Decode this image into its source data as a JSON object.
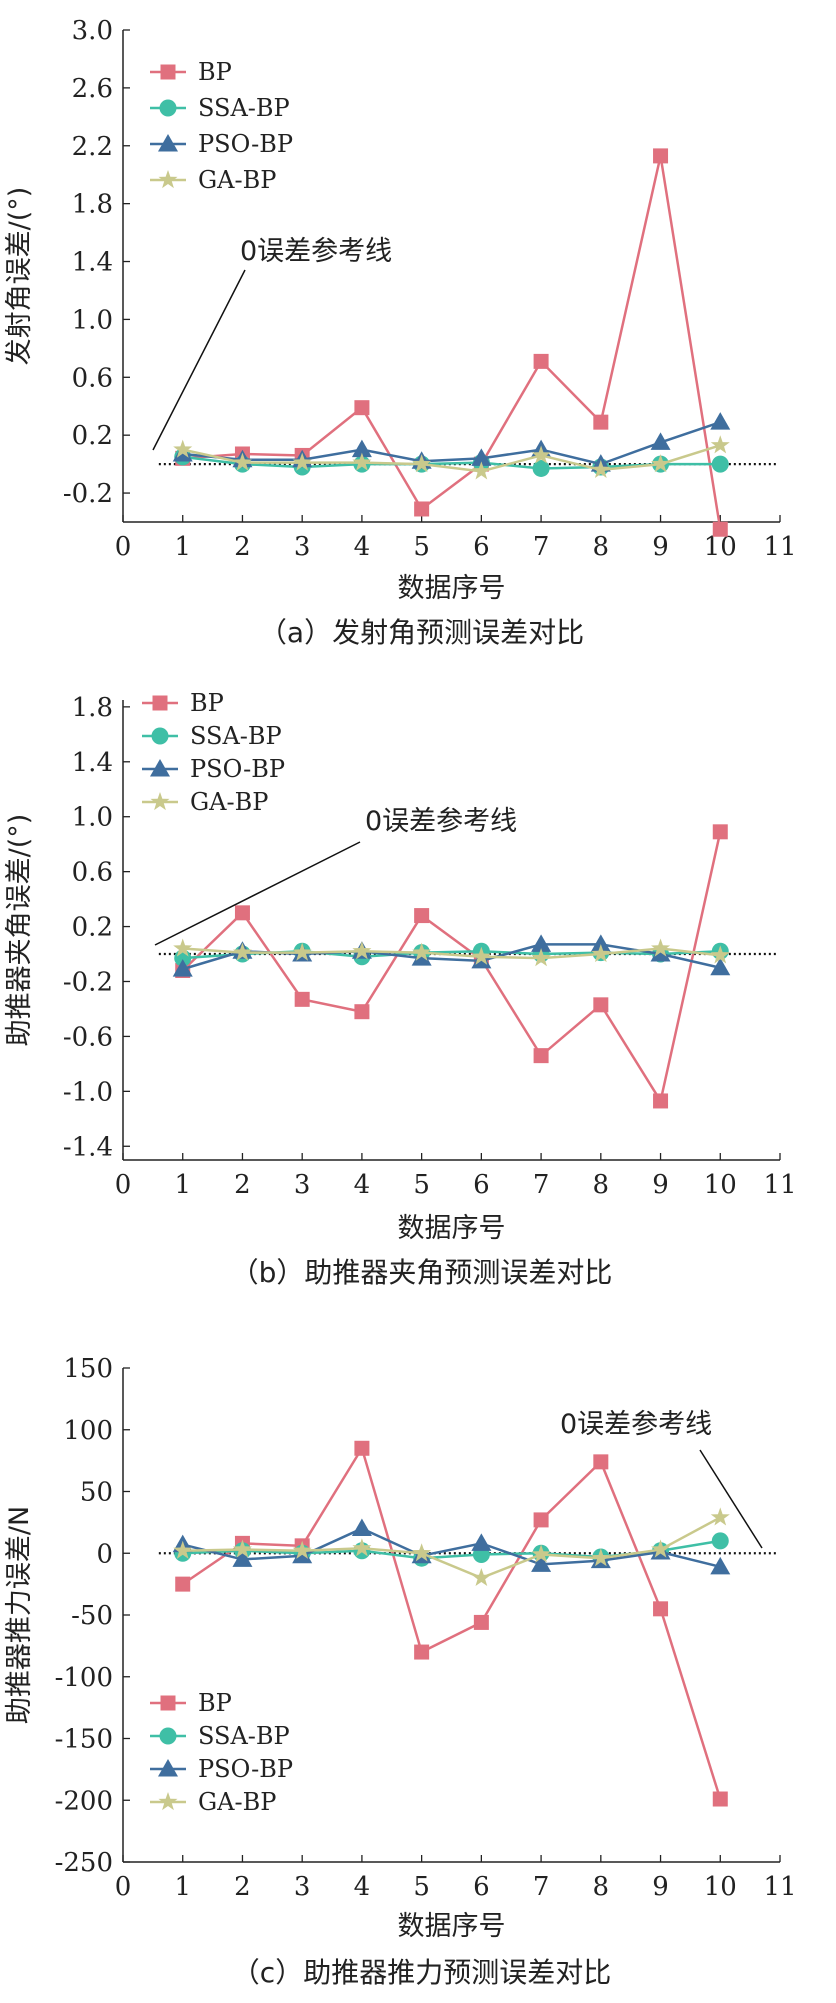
{
  "chart_data": [
    {
      "type": "line",
      "caption": "（a）发射角预测误差对比",
      "xlabel": "数据序号",
      "ylabel": "发射角误差/(°)",
      "xlim": [
        0,
        11
      ],
      "ylim": [
        -0.4,
        3.0
      ],
      "xticks": [
        "0",
        "1",
        "2",
        "3",
        "4",
        "5",
        "6",
        "7",
        "8",
        "9",
        "10",
        "11"
      ],
      "yticks": [
        "3.0",
        "2.6",
        "2.2",
        "1.8",
        "1.4",
        "1.0",
        "0.6",
        "0.2",
        "-0.2"
      ],
      "ytick_values": [
        3.0,
        2.6,
        2.2,
        1.8,
        1.4,
        1.0,
        0.6,
        0.2,
        -0.2
      ],
      "legend_position": "top-left",
      "reference_label": "0误差参考线",
      "x": [
        1,
        2,
        3,
        4,
        5,
        6,
        7,
        8,
        9,
        10
      ],
      "series": [
        {
          "name": "BP",
          "color": "#e0707e",
          "marker": "square",
          "values": [
            0.04,
            0.07,
            0.06,
            0.39,
            -0.31,
            0.0,
            0.71,
            0.29,
            2.13,
            -0.45
          ]
        },
        {
          "name": "SSA-BP",
          "color": "#3fbfa6",
          "marker": "circle",
          "values": [
            0.05,
            0.0,
            -0.02,
            0.0,
            0.0,
            0.01,
            -0.03,
            -0.02,
            0.0,
            0.0
          ]
        },
        {
          "name": "PSO-BP",
          "color": "#3f6e9e",
          "marker": "triangle",
          "values": [
            0.07,
            0.03,
            0.03,
            0.1,
            0.02,
            0.04,
            0.1,
            0.0,
            0.15,
            0.29
          ]
        },
        {
          "name": "GA-BP",
          "color": "#c9c98c",
          "marker": "star",
          "values": [
            0.1,
            0.01,
            0.01,
            0.01,
            0.0,
            -0.05,
            0.06,
            -0.04,
            0.0,
            0.13
          ]
        }
      ]
    },
    {
      "type": "line",
      "caption": "（b）助推器夹角预测误差对比",
      "xlabel": "数据序号",
      "ylabel": "助推器夹角误差/(°)",
      "xlim": [
        0,
        11
      ],
      "ylim": [
        -1.5,
        1.85
      ],
      "xticks": [
        "0",
        "1",
        "2",
        "3",
        "4",
        "5",
        "6",
        "7",
        "8",
        "9",
        "10",
        "11"
      ],
      "yticks": [
        "1.8",
        "1.4",
        "1.0",
        "0.6",
        "0.2",
        "-0.2",
        "-0.6",
        "-1.0",
        "-1.4"
      ],
      "ytick_values": [
        1.8,
        1.4,
        1.0,
        0.6,
        0.2,
        -0.2,
        -0.6,
        -1.0,
        -1.4
      ],
      "legend_position": "top-left",
      "reference_label": "0误差参考线",
      "x": [
        1,
        2,
        3,
        4,
        5,
        6,
        7,
        8,
        9,
        10
      ],
      "series": [
        {
          "name": "BP",
          "color": "#e0707e",
          "marker": "square",
          "values": [
            -0.12,
            0.3,
            -0.33,
            -0.42,
            0.28,
            -0.04,
            -0.74,
            -0.37,
            -1.07,
            0.89
          ]
        },
        {
          "name": "SSA-BP",
          "color": "#3fbfa6",
          "marker": "circle",
          "values": [
            -0.03,
            0.0,
            0.02,
            -0.02,
            0.01,
            0.02,
            0.0,
            0.01,
            0.0,
            0.02
          ]
        },
        {
          "name": "PSO-BP",
          "color": "#3f6e9e",
          "marker": "triangle",
          "values": [
            -0.11,
            0.02,
            0.0,
            0.02,
            -0.03,
            -0.05,
            0.07,
            0.07,
            0.0,
            -0.1
          ]
        },
        {
          "name": "GA-BP",
          "color": "#c9c98c",
          "marker": "star",
          "values": [
            0.04,
            0.01,
            0.01,
            0.02,
            0.01,
            -0.02,
            -0.03,
            0.0,
            0.04,
            -0.01
          ]
        }
      ]
    },
    {
      "type": "line",
      "caption": "（c）助推器推力预测误差对比",
      "xlabel": "数据序号",
      "ylabel": "助推器推力误差/N",
      "xlim": [
        0,
        11
      ],
      "ylim": [
        -250,
        150
      ],
      "xticks": [
        "0",
        "1",
        "2",
        "3",
        "4",
        "5",
        "6",
        "7",
        "8",
        "9",
        "10",
        "11"
      ],
      "yticks": [
        "150",
        "100",
        "50",
        "0",
        "-50",
        "-100",
        "-150",
        "-200",
        "-250"
      ],
      "ytick_values": [
        150,
        100,
        50,
        0,
        -50,
        -100,
        -150,
        -200,
        -250
      ],
      "legend_position": "bottom-left",
      "reference_label": "0误差参考线",
      "x": [
        1,
        2,
        3,
        4,
        5,
        6,
        7,
        8,
        9,
        10
      ],
      "series": [
        {
          "name": "BP",
          "color": "#e0707e",
          "marker": "square",
          "values": [
            -25,
            8,
            6,
            85,
            -80,
            -56,
            27,
            74,
            -45,
            -199
          ]
        },
        {
          "name": "SSA-BP",
          "color": "#3fbfa6",
          "marker": "circle",
          "values": [
            0,
            2,
            0,
            2,
            -4,
            -1,
            0,
            -3,
            2,
            10
          ]
        },
        {
          "name": "PSO-BP",
          "color": "#3f6e9e",
          "marker": "triangle",
          "values": [
            7,
            -5,
            -2,
            20,
            -2,
            8,
            -9,
            -6,
            1,
            -11
          ]
        },
        {
          "name": "GA-BP",
          "color": "#c9c98c",
          "marker": "star",
          "values": [
            2,
            3,
            2,
            4,
            0,
            -20,
            -1,
            -4,
            3,
            29
          ]
        }
      ]
    }
  ]
}
